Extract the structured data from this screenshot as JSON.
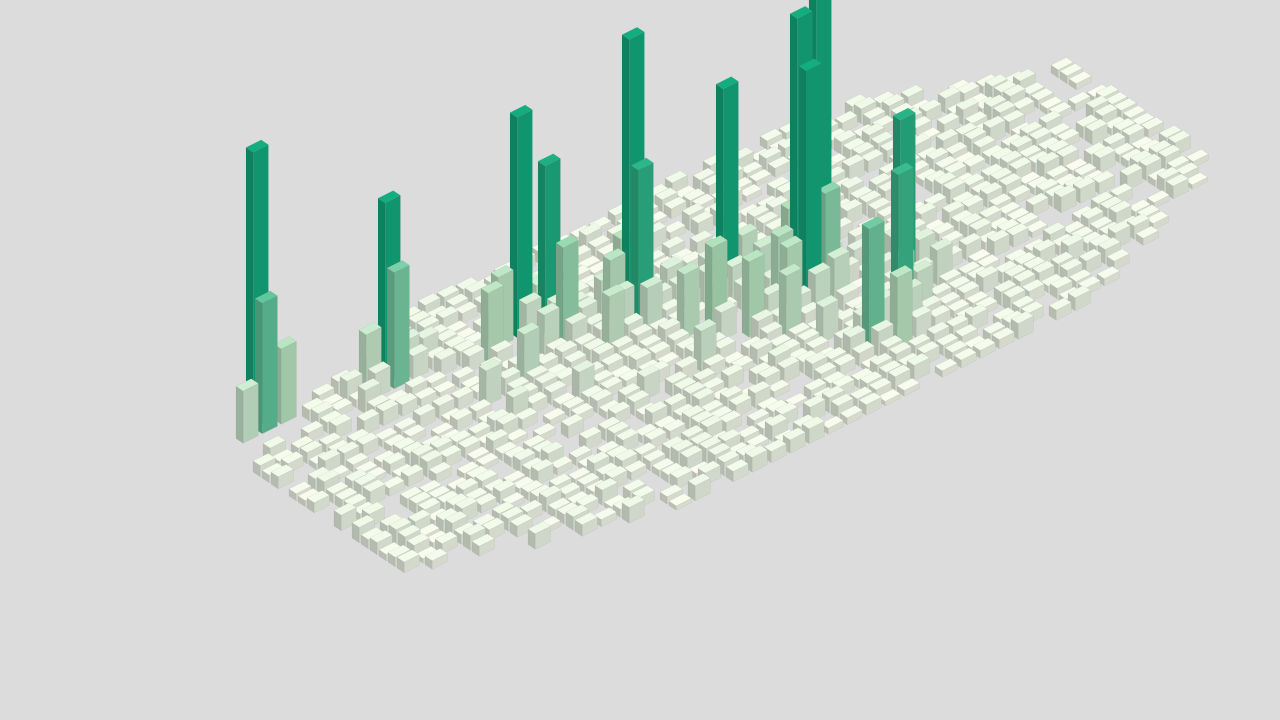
{
  "chart_data": {
    "type": "bar3d-grid",
    "title": "",
    "xlabel": "",
    "ylabel": "",
    "zlabel": "",
    "value_range": [
      0,
      100
    ],
    "colors": {
      "background": "#dcdcdc",
      "low": "#f3f4e8",
      "mid": "#a8d9b4",
      "high": "#12a67a"
    },
    "cells": [
      {
        "x": 2,
        "y": 2,
        "value": 95
      },
      {
        "x": 2,
        "y": 3,
        "value": 45
      },
      {
        "x": 3,
        "y": 3,
        "value": 26
      },
      {
        "x": 1,
        "y": 3,
        "value": 18
      },
      {
        "x": 8,
        "y": 4,
        "value": 62
      },
      {
        "x": 8,
        "y": 5,
        "value": 40
      },
      {
        "x": 14,
        "y": 6,
        "value": 76
      },
      {
        "x": 15,
        "y": 7,
        "value": 58
      },
      {
        "x": 15,
        "y": 9,
        "value": 34
      },
      {
        "x": 18,
        "y": 10,
        "value": 98
      },
      {
        "x": 18,
        "y": 11,
        "value": 55
      },
      {
        "x": 22,
        "y": 12,
        "value": 72
      },
      {
        "x": 25,
        "y": 16,
        "value": 120
      },
      {
        "x": 24,
        "y": 16,
        "value": 98
      },
      {
        "x": 24,
        "y": 17,
        "value": 82
      },
      {
        "x": 28,
        "y": 19,
        "value": 56
      },
      {
        "x": 26,
        "y": 23,
        "value": 52
      },
      {
        "x": 24,
        "y": 24,
        "value": 42
      },
      {
        "x": 25,
        "y": 25,
        "value": 24
      },
      {
        "x": 20,
        "y": 15,
        "value": 30
      },
      {
        "x": 19,
        "y": 14,
        "value": 22
      },
      {
        "x": 12,
        "y": 7,
        "value": 24
      },
      {
        "x": 12,
        "y": 11,
        "value": 18
      },
      {
        "x": 16,
        "y": 12,
        "value": 20
      },
      {
        "x": 21,
        "y": 17,
        "value": 26
      },
      {
        "x": 22,
        "y": 19,
        "value": 22
      },
      {
        "x": 10,
        "y": 11,
        "value": 12
      },
      {
        "x": 13,
        "y": 15,
        "value": 10
      },
      {
        "x": 18,
        "y": 18,
        "value": 14
      },
      {
        "x": 27,
        "y": 21,
        "value": 16
      },
      {
        "x": 29,
        "y": 21,
        "value": 12
      },
      {
        "x": 26,
        "y": 14,
        "value": 14
      },
      {
        "x": 23,
        "y": 14,
        "value": 18
      },
      {
        "x": 17,
        "y": 9,
        "value": 16
      },
      {
        "x": 14,
        "y": 9,
        "value": 14
      },
      {
        "x": 6,
        "y": 6,
        "value": 8
      },
      {
        "x": 10,
        "y": 14,
        "value": 9
      },
      {
        "x": 15,
        "y": 18,
        "value": 8
      },
      {
        "x": 20,
        "y": 22,
        "value": 7
      },
      {
        "x": 23,
        "y": 21,
        "value": 12
      }
    ]
  }
}
